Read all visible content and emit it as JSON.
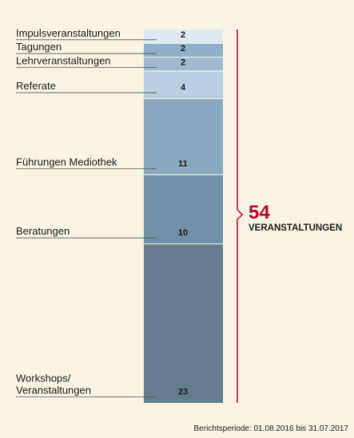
{
  "chart_data": {
    "type": "bar",
    "stacked": true,
    "categories": [
      "Impulsveranstaltungen",
      "Tagungen",
      "Lehrveranstaltungen",
      "Referate",
      "Führungen Mediothek",
      "Beratungen",
      "Workshops/\nVeranstaltungen"
    ],
    "values": [
      2,
      2,
      2,
      4,
      11,
      10,
      23
    ],
    "colors": [
      "#dde8f0",
      "#8fb0c8",
      "#9dbad0",
      "#b8d0e2",
      "#88a9c0",
      "#7090a7",
      "#637d8f"
    ],
    "accent_color": "#b8002e",
    "total": {
      "value": "54",
      "label": "VERANSTALTUNGEN"
    },
    "footnote": "Berichtsperiode: 01.08.2016 bis 31.07.2017"
  }
}
